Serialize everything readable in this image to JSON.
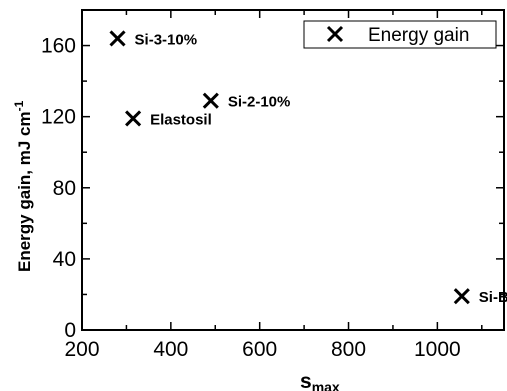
{
  "chart_data": {
    "type": "scatter",
    "series": [
      {
        "name": "Energy gain",
        "marker": "x",
        "points": [
          {
            "x": 280,
            "y": 164,
            "label": "Si-3-10%"
          },
          {
            "x": 490,
            "y": 129,
            "label": "Si-2-10%"
          },
          {
            "x": 315,
            "y": 119,
            "label": "Elastosil"
          },
          {
            "x": 1055,
            "y": 19,
            "label": "Si-Blank"
          }
        ]
      }
    ],
    "xlabel": "s",
    "xlabel_sub": "max",
    "ylabel": "Energy gain, mJ cm",
    "ylabel_sup": "-1",
    "xlim": [
      200,
      1150
    ],
    "ylim": [
      0,
      180
    ],
    "xticks": [
      200,
      400,
      600,
      800,
      1000
    ],
    "yticks": [
      0,
      40,
      80,
      120,
      160
    ],
    "grid": false,
    "legend_position": "top-right",
    "color": "#000000"
  }
}
